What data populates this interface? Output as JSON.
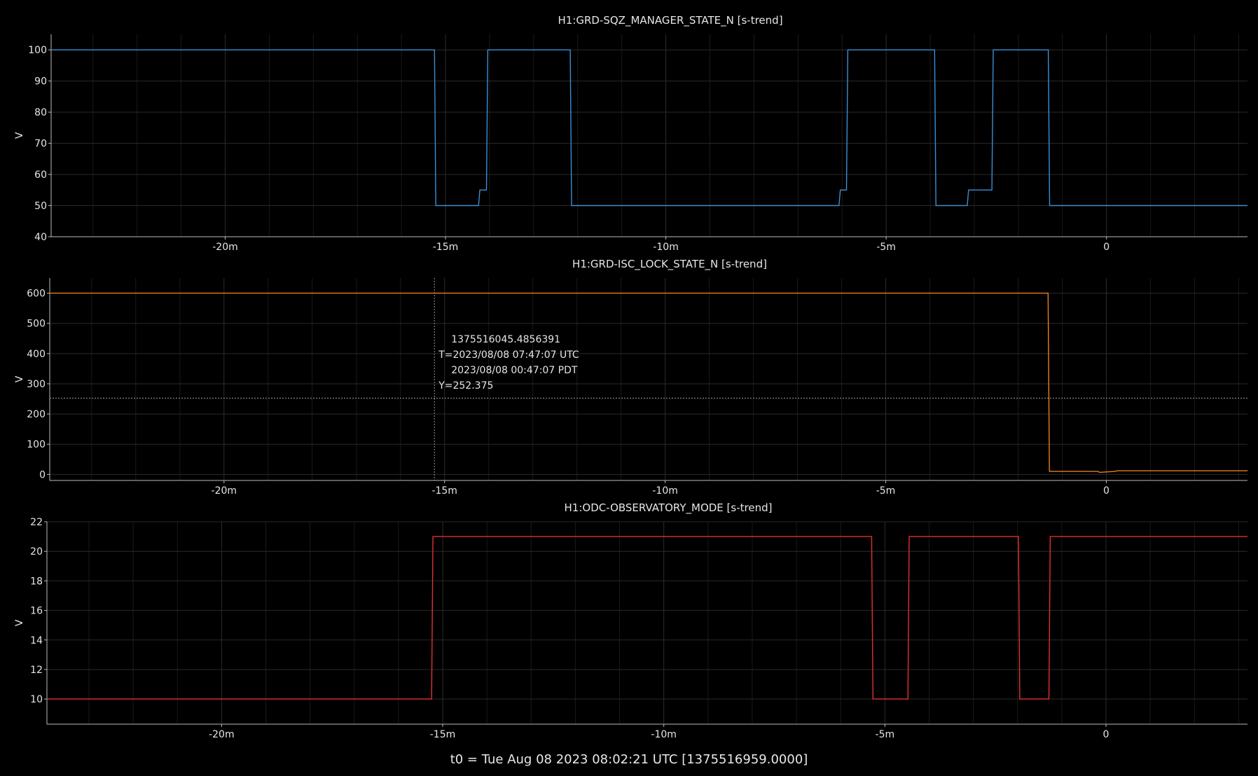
{
  "footer": "t0 = Tue Aug 08 2023 08:02:21 UTC [1375516959.0000]",
  "chart_data": [
    {
      "type": "line",
      "title": "H1:GRD-SQZ_MANAGER_STATE_N [s-trend]",
      "ylabel": "V",
      "color": "#3a8fd4",
      "xlim": [
        -23.95,
        3.2
      ],
      "ylim": [
        40,
        105
      ],
      "x_ticks": [
        -20,
        -15,
        -10,
        -5,
        0
      ],
      "x_tick_labels": [
        "-20m",
        "-15m",
        "-10m",
        "-5m",
        "0"
      ],
      "y_ticks": [
        40,
        50,
        60,
        70,
        80,
        90,
        100
      ],
      "grid": true,
      "series": [
        {
          "x": [
            -23.95,
            -15.25,
            -15.22,
            -14.25,
            -14.22,
            -14.07,
            -14.04,
            -12.17,
            -12.14,
            -6.07,
            -6.04,
            -5.9,
            -5.87,
            -3.9,
            -3.87,
            -3.16,
            -3.13,
            -2.6,
            -2.57,
            -1.32,
            -1.29,
            3.2
          ],
          "y": [
            100,
            100,
            50,
            50,
            55,
            55,
            100,
            100,
            50,
            50,
            55,
            55,
            100,
            100,
            50,
            50,
            55,
            55,
            100,
            100,
            50,
            50
          ]
        }
      ]
    },
    {
      "type": "line",
      "title": "H1:GRD-ISC_LOCK_STATE_N [s-trend]",
      "ylabel": "V",
      "color": "#e8801c",
      "xlim": [
        -23.95,
        3.2
      ],
      "ylim": [
        -20,
        650
      ],
      "x_ticks": [
        -20,
        -15,
        -10,
        -5,
        0
      ],
      "x_tick_labels": [
        "-20m",
        "-15m",
        "-10m",
        "-5m",
        "0"
      ],
      "y_ticks": [
        0,
        100,
        200,
        300,
        400,
        500,
        600
      ],
      "grid": true,
      "series": [
        {
          "x": [
            -23.95,
            -1.32,
            -1.29,
            -0.2,
            -0.15,
            0.2,
            0.25,
            3.2
          ],
          "y": [
            600,
            600,
            10,
            10,
            7,
            10,
            12,
            12
          ]
        }
      ],
      "cursor": {
        "x": -15.23,
        "y": 252.375,
        "lines": [
          "1375516045.4856391",
          "T=2023/08/08 07:47:07 UTC",
          "2023/08/08 00:47:07 PDT",
          "Y=252.375"
        ]
      }
    },
    {
      "type": "line",
      "title": "H1:ODC-OBSERVATORY_MODE [s-trend]",
      "ylabel": "V",
      "color": "#e03131",
      "xlim": [
        -23.95,
        3.2
      ],
      "ylim": [
        8.3,
        22
      ],
      "x_ticks": [
        -20,
        -15,
        -10,
        -5,
        0
      ],
      "x_tick_labels": [
        "-20m",
        "-15m",
        "-10m",
        "-5m",
        "0"
      ],
      "y_ticks": [
        10,
        12,
        14,
        16,
        18,
        20,
        22
      ],
      "grid": true,
      "series": [
        {
          "x": [
            -23.95,
            -15.25,
            -15.22,
            -5.3,
            -5.27,
            -4.48,
            -4.45,
            -1.98,
            -1.95,
            -1.29,
            -1.26,
            3.2
          ],
          "y": [
            10,
            10,
            21,
            21,
            10,
            10,
            21,
            21,
            10,
            10,
            21,
            21
          ]
        }
      ]
    }
  ]
}
